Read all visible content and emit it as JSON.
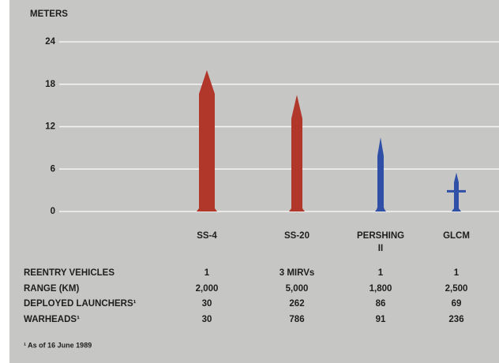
{
  "chart_data": {
    "type": "missile",
    "y_label": "METERS",
    "categories": [
      "SS-4",
      "SS-20",
      "PERSHING II",
      "GLCM"
    ],
    "values": [
      20,
      16.5,
      10.5,
      5.5
    ],
    "colors": [
      "#b2372b",
      "#b2372b",
      "#3050a8",
      "#3050a8"
    ],
    "ylim": [
      0,
      24
    ],
    "yticks": [
      0,
      6,
      12,
      18,
      24
    ],
    "grid": true
  },
  "table": {
    "rows": [
      {
        "label": "REENTRY VEHICLES",
        "values": [
          "1",
          "3 MIRVs",
          "1",
          "1"
        ]
      },
      {
        "label": "RANGE (KM)",
        "values": [
          "2,000",
          "5,000",
          "1,800",
          "2,500"
        ]
      },
      {
        "label": "DEPLOYED LAUNCHERS¹",
        "values": [
          "30",
          "262",
          "86",
          "69"
        ]
      },
      {
        "label": "WARHEADS¹",
        "values": [
          "30",
          "786",
          "91",
          "236"
        ]
      }
    ]
  },
  "footnote": "¹ As of 16 June 1989"
}
